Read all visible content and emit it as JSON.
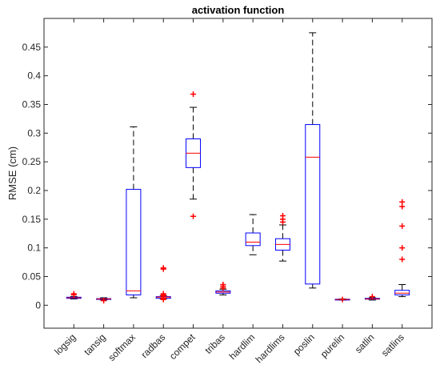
{
  "chart_data": {
    "type": "boxplot",
    "title": "activation function",
    "xlabel": "",
    "ylabel": "RMSE (cm)",
    "ylim": [
      -0.04,
      0.5
    ],
    "yticks": [
      0,
      0.05,
      0.1,
      0.15,
      0.2,
      0.25,
      0.3,
      0.35,
      0.4,
      0.45
    ],
    "ytick_labels": [
      "0",
      "0.05",
      "0.1",
      "0.15",
      "0.2",
      "0.25",
      "0.3",
      "0.35",
      "0.4",
      "0.45"
    ],
    "grid": false,
    "categories": [
      "logsig",
      "tansig",
      "softmax",
      "radbas",
      "compet",
      "tribas",
      "hardlim",
      "hardlims",
      "poslin",
      "purelin",
      "satlin",
      "satlins"
    ],
    "boxes": [
      {
        "whisker_low": 0.011,
        "q1": 0.012,
        "median": 0.013,
        "q3": 0.014,
        "whisker_high": 0.015,
        "outliers": [
          0.018,
          0.02
        ]
      },
      {
        "whisker_low": 0.009,
        "q1": 0.0105,
        "median": 0.011,
        "q3": 0.0115,
        "whisker_high": 0.013,
        "outliers": [
          0.008
        ]
      },
      {
        "whisker_low": 0.013,
        "q1": 0.018,
        "median": 0.025,
        "q3": 0.202,
        "whisker_high": 0.311,
        "outliers": []
      },
      {
        "whisker_low": 0.011,
        "q1": 0.012,
        "median": 0.014,
        "q3": 0.015,
        "whisker_high": 0.017,
        "outliers": [
          0.01,
          0.012,
          0.016,
          0.018,
          0.02,
          0.063,
          0.065
        ]
      },
      {
        "whisker_low": 0.185,
        "q1": 0.24,
        "median": 0.265,
        "q3": 0.29,
        "whisker_high": 0.345,
        "outliers": [
          0.155,
          0.368
        ]
      },
      {
        "whisker_low": 0.018,
        "q1": 0.021,
        "median": 0.023,
        "q3": 0.025,
        "whisker_high": 0.028,
        "outliers": [
          0.03,
          0.033,
          0.036
        ]
      },
      {
        "whisker_low": 0.088,
        "q1": 0.104,
        "median": 0.11,
        "q3": 0.126,
        "whisker_high": 0.158,
        "outliers": []
      },
      {
        "whisker_low": 0.077,
        "q1": 0.096,
        "median": 0.106,
        "q3": 0.116,
        "whisker_high": 0.14,
        "outliers": [
          0.145,
          0.15,
          0.156
        ]
      },
      {
        "whisker_low": 0.03,
        "q1": 0.037,
        "median": 0.258,
        "q3": 0.315,
        "whisker_high": 0.475,
        "outliers": []
      },
      {
        "whisker_low": 0.009,
        "q1": 0.0095,
        "median": 0.01,
        "q3": 0.0105,
        "whisker_high": 0.011,
        "outliers": [
          0.01
        ]
      },
      {
        "whisker_low": 0.009,
        "q1": 0.0105,
        "median": 0.011,
        "q3": 0.012,
        "whisker_high": 0.013,
        "outliers": [
          0.015
        ]
      },
      {
        "whisker_low": 0.015,
        "q1": 0.018,
        "median": 0.021,
        "q3": 0.026,
        "whisker_high": 0.036,
        "outliers": [
          0.08,
          0.1,
          0.138,
          0.172,
          0.18
        ]
      }
    ],
    "colors": {
      "box": "#0000ff",
      "median": "#ff0000",
      "whisker": "#000000",
      "outlier": "#ff0000",
      "axes": "#262626"
    }
  }
}
